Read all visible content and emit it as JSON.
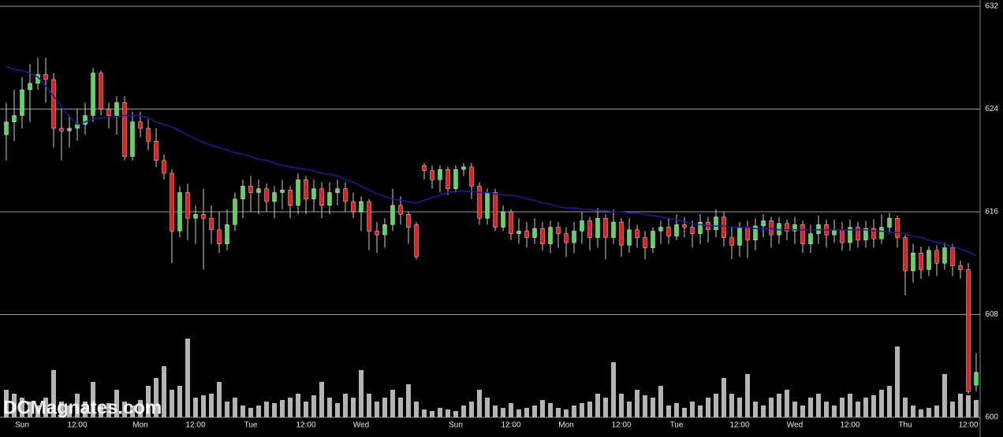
{
  "chart_data": {
    "type": "candlestick",
    "watermark": "DCMagnates.com",
    "categories": [
      null,
      null,
      "Sun",
      null,
      null,
      null,
      null,
      null,
      null,
      "12:00",
      null,
      null,
      null,
      null,
      null,
      null,
      null,
      "Mon",
      null,
      null,
      null,
      null,
      null,
      null,
      "12:00",
      null,
      null,
      null,
      null,
      null,
      null,
      "Tue",
      null,
      null,
      null,
      null,
      null,
      null,
      "12:00",
      null,
      null,
      null,
      null,
      null,
      null,
      "Wed",
      null,
      null,
      null,
      null,
      null,
      null,
      null,
      null,
      null,
      null,
      null,
      "Sun",
      null,
      null,
      null,
      null,
      null,
      null,
      "12:00",
      null,
      null,
      null,
      null,
      null,
      null,
      "Mon",
      null,
      null,
      null,
      null,
      null,
      null,
      "12:00",
      null,
      null,
      null,
      null,
      null,
      null,
      "Tue",
      null,
      null,
      null,
      null,
      null,
      null,
      null,
      "12:00",
      null,
      null,
      null,
      null,
      null,
      null,
      "Wed",
      null,
      null,
      null,
      null,
      null,
      null,
      "12:00",
      null,
      null,
      null,
      null,
      null,
      null,
      "Thu",
      null,
      null,
      null,
      null,
      null,
      null,
      null,
      "12:00",
      null
    ],
    "open": [
      622,
      623,
      623.5,
      625.5,
      626,
      626.7,
      626.3,
      622.5,
      622.3,
      622.5,
      622.8,
      623.5,
      626.8,
      624,
      623.5,
      624.5,
      620.3,
      623,
      622.5,
      621.5,
      620,
      619,
      614.5,
      617.5,
      615.5,
      615.8,
      615.5,
      614.6,
      613.5,
      615,
      617,
      618,
      617.5,
      617.8,
      616.8,
      617.5,
      617.7,
      616.5,
      618.5,
      617,
      617.8,
      616.5,
      617.5,
      617.8,
      616.8,
      616,
      616.8,
      614.5,
      614.2,
      615,
      616.5,
      615.8,
      615,
      619.6,
      619.2,
      618.5,
      619.3,
      617.8,
      619.3,
      619.5,
      618,
      615.5,
      617.5,
      614.8,
      616,
      614.3,
      614.5,
      614,
      614.7,
      613.5,
      614.8,
      614.3,
      613.6,
      614.5,
      615.3,
      614,
      615.5,
      614,
      615.2,
      613.4,
      614.6,
      614,
      613.2,
      614.5,
      614.8,
      614.1,
      615,
      614.8,
      614.3,
      615.2,
      614.6,
      615.6,
      614,
      613.4,
      614.8,
      613.8,
      614.9,
      615.3,
      614.2,
      615.1,
      614.5,
      615,
      613.5,
      614.3,
      615,
      614.2,
      614.6,
      613.6,
      614.8,
      613.8,
      614.7,
      613.9,
      614.8,
      615.5,
      614,
      611.4,
      612.8,
      611.5,
      613,
      612,
      613.2,
      611.8,
      611.5,
      602.5
    ],
    "high": [
      624.5,
      625.5,
      626.5,
      627.5,
      628,
      628,
      626.8,
      624,
      623.5,
      624,
      624.5,
      627.2,
      627,
      624.5,
      625,
      625,
      623.8,
      623.8,
      623.2,
      622.5,
      620.5,
      619.3,
      618,
      618.2,
      616.5,
      617.8,
      616.5,
      616,
      616.2,
      617.5,
      618.5,
      618.8,
      618.5,
      618.2,
      618,
      618.5,
      618,
      619,
      618.8,
      618.5,
      618.3,
      618.3,
      618.5,
      618.3,
      617.5,
      617.2,
      617,
      615.2,
      615.5,
      617.8,
      617.2,
      616,
      615.2,
      619.8,
      619.6,
      619.6,
      619.5,
      619.6,
      619.8,
      619.8,
      618.3,
      617.8,
      617.8,
      616.5,
      616.2,
      615.5,
      615.2,
      615.5,
      615.2,
      615.3,
      615.2,
      614.8,
      615.2,
      616,
      615.6,
      616.3,
      615.8,
      616.2,
      615.5,
      615.5,
      615,
      614.5,
      614.8,
      615.3,
      615.5,
      615.8,
      615.6,
      615.3,
      615.8,
      615.6,
      616.2,
      616,
      614.8,
      615.2,
      615.3,
      615.5,
      615.8,
      615.6,
      615.6,
      615.4,
      615.6,
      615.3,
      615,
      615.7,
      615.4,
      615.4,
      615.2,
      615.4,
      615.2,
      615.3,
      615.4,
      615.8,
      615.9,
      615.7,
      614.2,
      613.5,
      613.3,
      613.3,
      613.4,
      613.6,
      613.5,
      612.2,
      612,
      605
    ],
    "low": [
      620,
      621.5,
      622.5,
      623,
      625.5,
      624.5,
      621,
      620,
      621,
      621.5,
      622,
      623,
      623.5,
      622.5,
      622,
      620,
      620,
      621.8,
      620.8,
      619.5,
      618.5,
      612,
      614,
      613.8,
      613.5,
      611.5,
      613.5,
      612.8,
      613,
      614.5,
      615.5,
      616,
      615.8,
      616,
      615.5,
      616.2,
      615.5,
      615.8,
      615.8,
      616,
      615.5,
      615.8,
      616.5,
      616,
      615.5,
      614.5,
      613,
      612.8,
      613.2,
      614.5,
      615,
      613.5,
      612.3,
      618.5,
      617.8,
      617.5,
      617.3,
      617.5,
      618.8,
      617,
      615,
      615,
      614.5,
      614.5,
      613.8,
      613.5,
      613.2,
      613.5,
      613,
      612.8,
      613.2,
      612.5,
      612.8,
      613.5,
      613,
      613.2,
      612.3,
      613.5,
      612.5,
      612.8,
      613.2,
      612.3,
      612.8,
      613.5,
      613.5,
      613.8,
      614,
      613.2,
      613.5,
      613.6,
      614,
      613.3,
      612.3,
      612.5,
      612.4,
      613,
      614,
      613.2,
      613.5,
      613.8,
      613.5,
      612.8,
      612.8,
      613.5,
      613.2,
      613.6,
      613,
      613,
      613.2,
      613.2,
      613.2,
      613.5,
      614.3,
      613.2,
      609.5,
      610.5,
      610.8,
      611,
      611,
      611.5,
      611,
      610.8,
      601.8,
      602
    ],
    "close": [
      623,
      623.5,
      625.5,
      626,
      626.7,
      626.3,
      622.5,
      622.3,
      622.5,
      622.8,
      623.5,
      626.8,
      624,
      623.5,
      624.5,
      620.3,
      623,
      622.5,
      621.5,
      620,
      619,
      614.5,
      617.5,
      615.5,
      615.8,
      615.5,
      614.6,
      613.5,
      615,
      617,
      618,
      617.5,
      617.8,
      616.8,
      617.5,
      617.7,
      616.5,
      618.5,
      617,
      617.8,
      616.5,
      617.5,
      617.8,
      616.8,
      616,
      616.8,
      614.5,
      614.2,
      615,
      616.5,
      615.8,
      614.8,
      612.5,
      619.2,
      618.5,
      619.3,
      617.8,
      619.3,
      619.5,
      618,
      615.5,
      617.5,
      614.8,
      616,
      614.3,
      614.5,
      614,
      614.7,
      613.5,
      614.8,
      614.3,
      613.6,
      614.5,
      615.3,
      614,
      615.5,
      614,
      615.2,
      613.4,
      614.6,
      614,
      613.2,
      614.5,
      614.8,
      614.1,
      615,
      614.8,
      614.3,
      615.2,
      614.6,
      615.6,
      614,
      613.4,
      614.8,
      613.8,
      614.9,
      615.3,
      614.2,
      615.1,
      614.5,
      615,
      613.5,
      614.3,
      615,
      614.2,
      614.6,
      613.6,
      614.8,
      613.8,
      614.7,
      613.9,
      614.8,
      615.5,
      614,
      611.4,
      612.8,
      611.5,
      613,
      612,
      613.2,
      611.8,
      611.5,
      602,
      603.5
    ],
    "volume": [
      35,
      30,
      25,
      20,
      15,
      25,
      60,
      20,
      15,
      30,
      20,
      45,
      15,
      18,
      35,
      20,
      15,
      22,
      40,
      50,
      65,
      35,
      40,
      100,
      25,
      28,
      30,
      45,
      20,
      25,
      15,
      12,
      15,
      20,
      18,
      22,
      25,
      30,
      20,
      28,
      45,
      25,
      18,
      30,
      25,
      60,
      30,
      20,
      25,
      35,
      25,
      42,
      20,
      10,
      8,
      12,
      10,
      8,
      15,
      20,
      35,
      25,
      15,
      12,
      18,
      10,
      12,
      15,
      22,
      18,
      12,
      10,
      15,
      18,
      20,
      30,
      25,
      70,
      30,
      20,
      35,
      28,
      25,
      40,
      15,
      18,
      12,
      20,
      15,
      25,
      30,
      50,
      30,
      25,
      55,
      20,
      15,
      25,
      30,
      35,
      20,
      15,
      25,
      30,
      20,
      15,
      25,
      30,
      20,
      25,
      28,
      35,
      40,
      90,
      25,
      15,
      10,
      12,
      15,
      55,
      20,
      30,
      28,
      22
    ],
    "ma": {
      "color": "#1c1ca8",
      "values": [
        627.3,
        627.1,
        627,
        626.8,
        626.5,
        625.8,
        625,
        624.2,
        623.4,
        622.8,
        623,
        623.2,
        623.3,
        623.4,
        623.4,
        623.5,
        623.5,
        623.5,
        623.3,
        623,
        622.8,
        622.6,
        622.3,
        622,
        621.7,
        621.4,
        621.2,
        621,
        620.8,
        620.6,
        620.5,
        620.3,
        620.1,
        620,
        619.8,
        619.6,
        619.5,
        619.4,
        619.3,
        619.2,
        619,
        618.9,
        618.8,
        618.5,
        618.3,
        618,
        617.7,
        617.4,
        617.2,
        617,
        616.9,
        616.8,
        616.7,
        616.9,
        617.1,
        617.3,
        617.5,
        617.6,
        617.6,
        617.6,
        617.5,
        617.5,
        617.4,
        617.3,
        617.3,
        617.2,
        617,
        616.9,
        616.7,
        616.6,
        616.4,
        616.3,
        616.3,
        616.2,
        616.2,
        616.1,
        616.1,
        616,
        616,
        615.9,
        615.9,
        615.8,
        615.7,
        615.6,
        615.5,
        615.4,
        615.2,
        615.1,
        615,
        614.9,
        614.9,
        614.9,
        614.8,
        614.8,
        614.8,
        614.7,
        614.7,
        614.7,
        614.6,
        614.6,
        614.6,
        614.6,
        614.6,
        614.6,
        614.6,
        614.6,
        614.6,
        614.6,
        614.6,
        614.6,
        614.5,
        614.5,
        614.4,
        614.4,
        614.3,
        614.1,
        614,
        613.8,
        613.6,
        613.5,
        613.3,
        613.1,
        612.9,
        612.6
      ]
    },
    "up_color": "#5cd65c",
    "down_color": "#e0201e",
    "wick_color": "#d0d0d0",
    "volume_color": "#b4b4b4",
    "ylim": [
      600,
      632
    ],
    "yticks": [
      600,
      608,
      616,
      624,
      632
    ],
    "grid": true
  }
}
